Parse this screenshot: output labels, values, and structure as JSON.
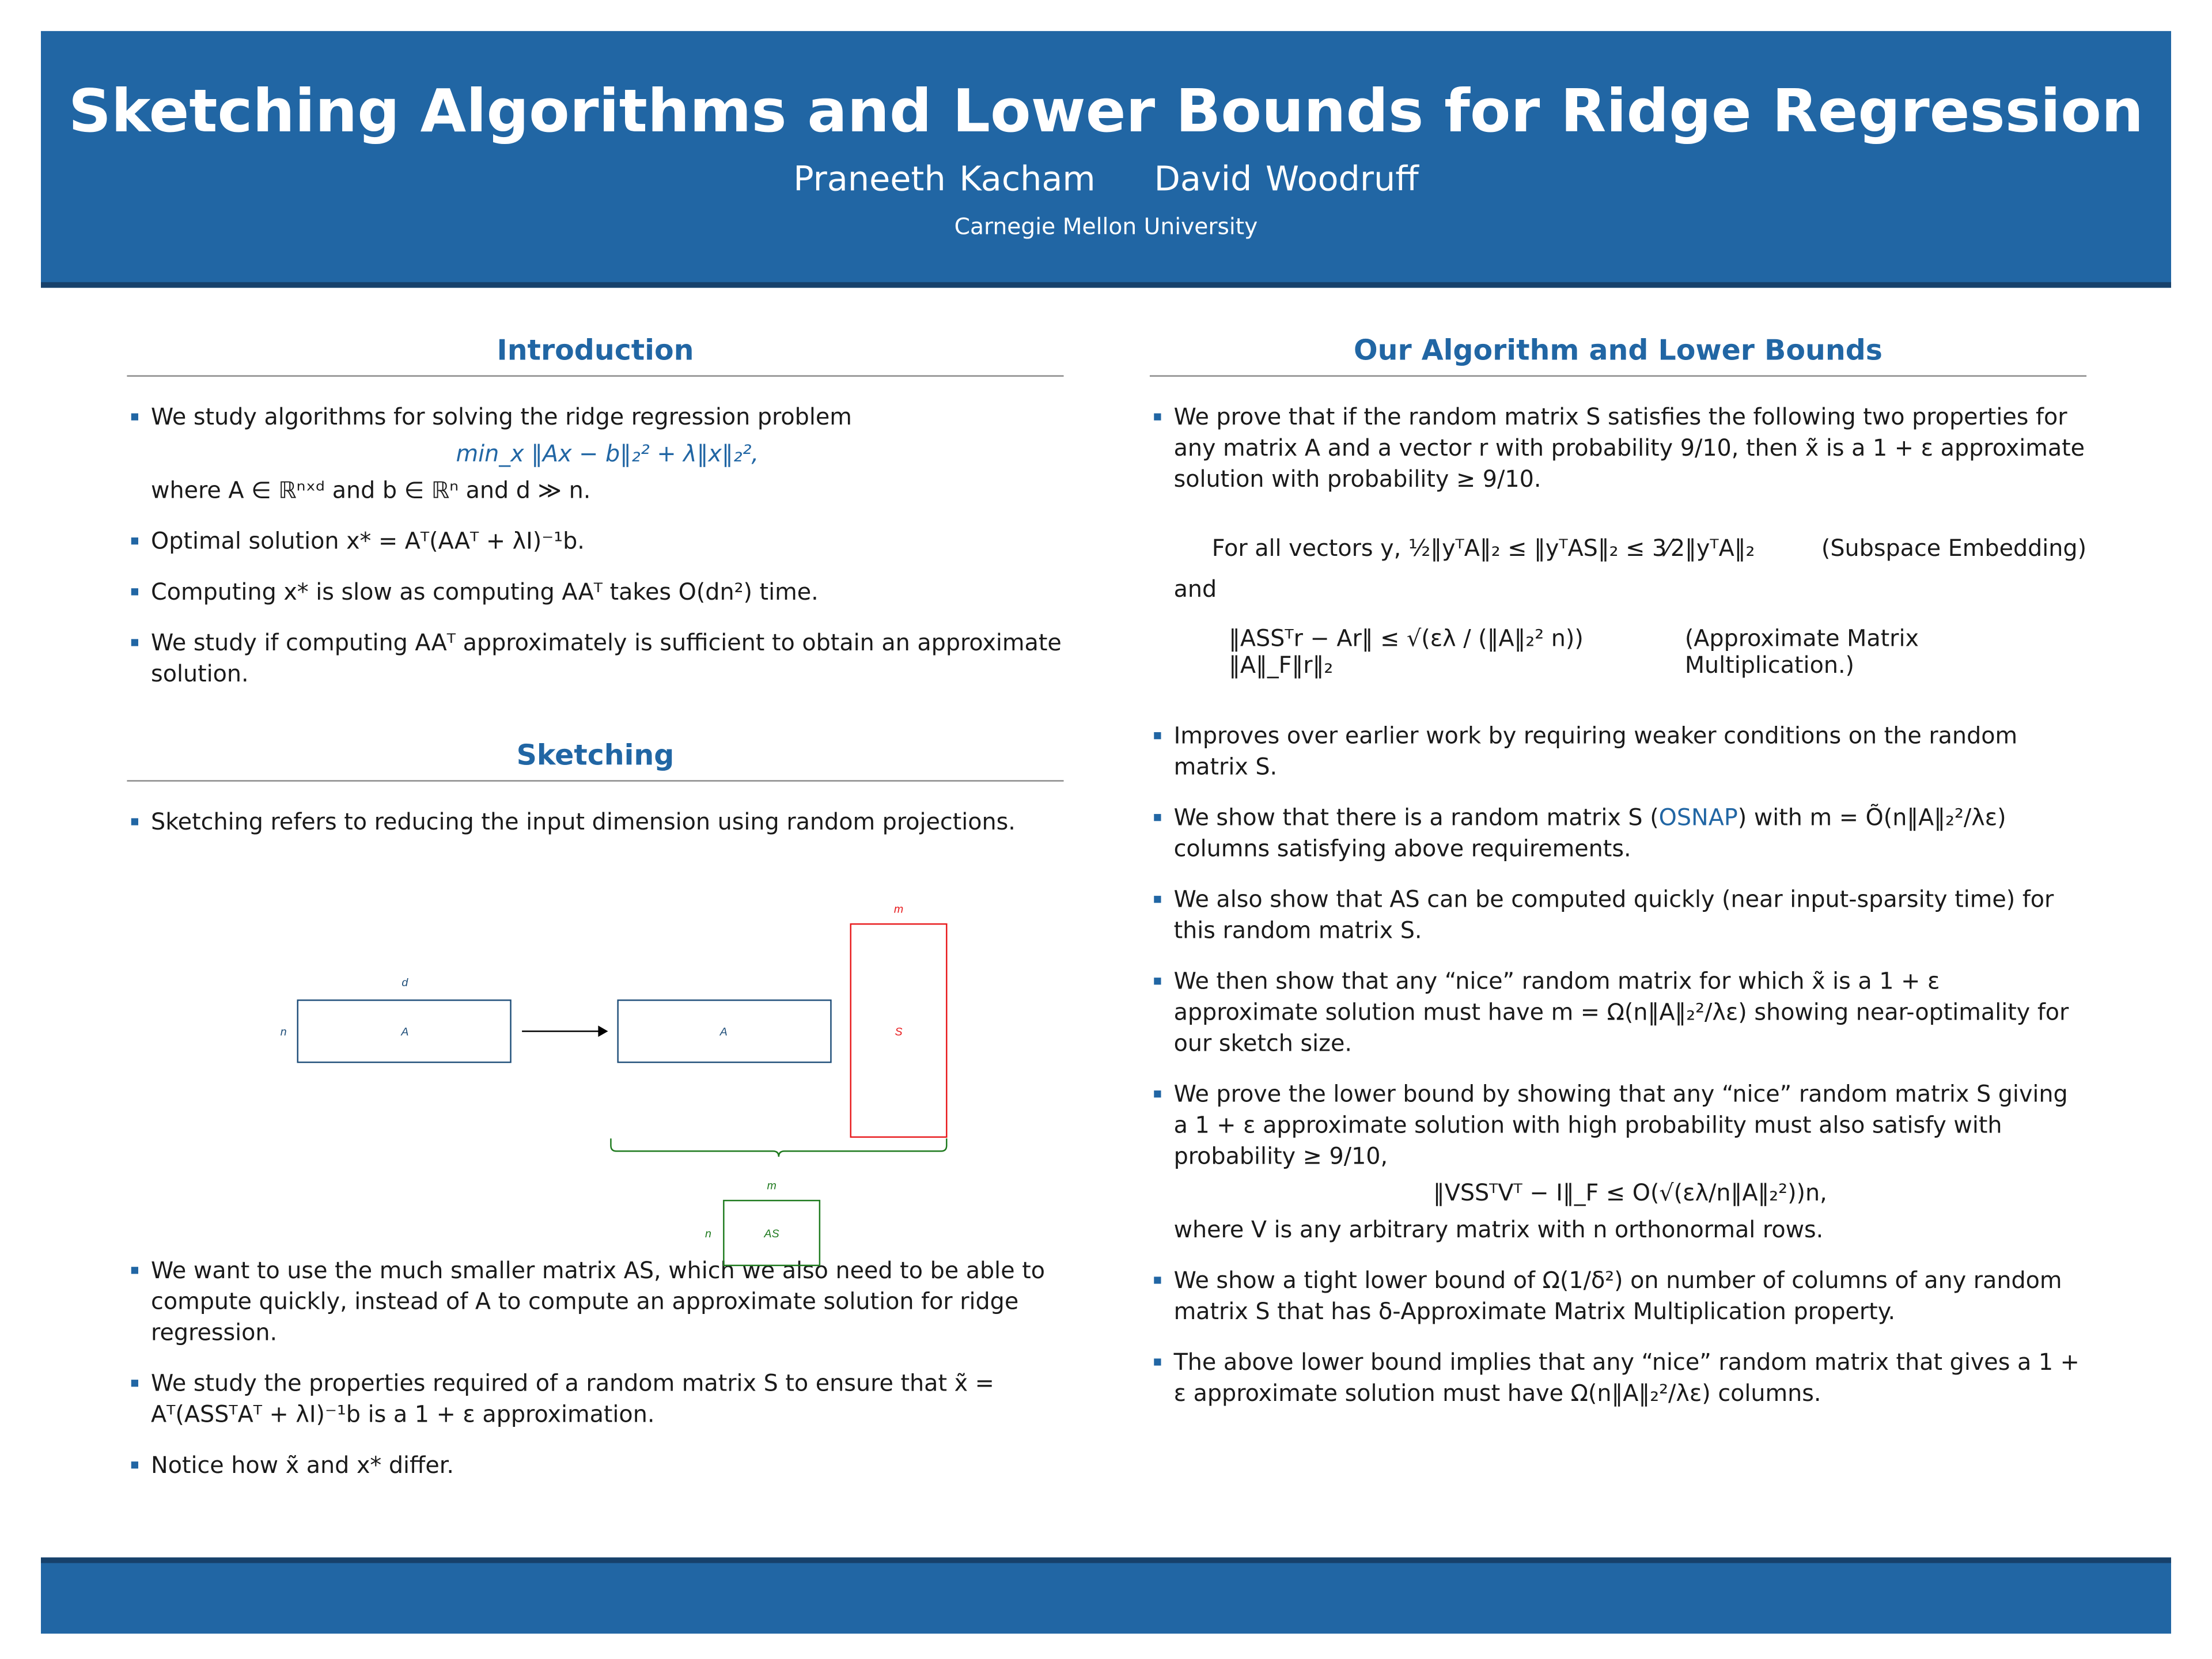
{
  "header": {
    "title": "Sketching Algorithms and Lower Bounds for Ridge Regression",
    "authors": [
      "Praneeth Kacham",
      "David Woodruff"
    ],
    "affiliation": "Carnegie Mellon University"
  },
  "colors": {
    "header_blue": "#2166a4",
    "header_border": "#17416b",
    "matrix_A": "#1f4e79",
    "matrix_S": "#e8191c",
    "matrix_AS": "#1e7a1e"
  },
  "introduction": {
    "title": "Introduction",
    "bullets": [
      "We study algorithms for solving the ridge regression problem",
      "Optimal solution x* = Aᵀ(AAᵀ + λI)⁻¹b.",
      "Computing x* is slow as computing AAᵀ takes O(dn²) time.",
      "We study if computing AAᵀ approximately is sufficient to obtain an approximate solution."
    ],
    "equation": "min_x ‖Ax − b‖₂² + λ‖x‖₂²,",
    "where": "where A ∈ ℝⁿˣᵈ and b ∈ ℝⁿ and d ≫ n."
  },
  "sketching": {
    "title": "Sketching",
    "bullets": [
      "Sketching refers to reducing the input dimension using random projections.",
      "We want to use the much smaller matrix AS, which we also need to be able to compute quickly, instead of A to compute an approximate solution for ridge regression.",
      "We study the properties required of a random matrix S to ensure that x̃ = Aᵀ(ASSᵀAᵀ + λI)⁻¹b is a 1 + ε approximation.",
      "Notice how x̃ and x* differ."
    ],
    "diagram": {
      "A_label": "A",
      "S_label": "S",
      "AS_label": "AS",
      "n": "n",
      "d": "d",
      "m": "m"
    }
  },
  "algorithm": {
    "title": "Our Algorithm and Lower Bounds",
    "intro": "We prove that if the random matrix S satisfies the following two properties for any matrix A and a vector r with probability 9/10, then x̃ is a 1 + ε approximate solution with probability ≥ 9/10.",
    "subspace_eq": "For all vectors y, ½‖yᵀA‖₂ ≤ ‖yᵀAS‖₂ ≤ 3⁄2‖yᵀA‖₂",
    "subspace_name": "(Subspace Embedding)",
    "and": "and",
    "amm_eq": "‖ASSᵀr − Ar‖ ≤ √(ελ / (‖A‖₂² n)) ‖A‖_F‖r‖₂",
    "amm_name": "(Approximate Matrix Multiplication.)",
    "bullets": [
      "Improves over earlier work by requiring weaker conditions on the random matrix S.",
      "We also show that AS can be computed quickly (near input-sparsity time) for this random matrix S.",
      "We then show that any “nice” random matrix for which x̃ is a 1 + ε approximate solution must have m = Ω(n‖A‖₂²/λε) showing near-optimality for our sketch size.",
      "We prove the lower bound by showing that any “nice” random matrix S giving a 1 + ε approximate solution with high probability must also satisfy with probability ≥ 9/10,",
      "We show a tight lower bound of Ω(1/δ²) on number of columns of any random matrix S that has δ-Approximate Matrix Multiplication property.",
      "The above lower bound implies that any “nice” random matrix that gives a 1 + ε approximate solution must have Ω(n‖A‖₂²/λε) columns."
    ],
    "osnap_pre": "We show that there is a random matrix S (",
    "osnap_link": "OSNAP",
    "osnap_post": ") with m = Õ(n‖A‖₂²/λε) columns satisfying above requirements.",
    "lb_eq": "‖VSSᵀVᵀ − I‖_F ≤ O(√(ελ/n‖A‖₂²))n,",
    "lb_where": "where V is any arbitrary matrix with n orthonormal rows."
  }
}
